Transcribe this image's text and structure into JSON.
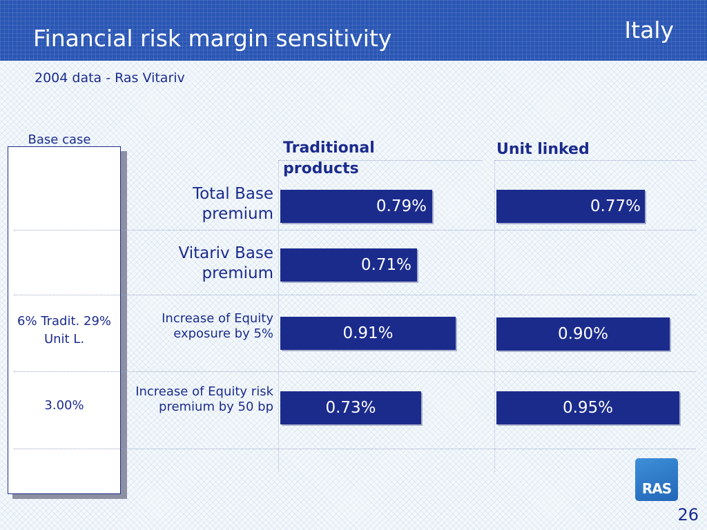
{
  "header": {
    "title": "Financial risk margin sensitivity",
    "country": "Italy"
  },
  "subtitle": "2004 data - Ras Vitariv",
  "base_case": {
    "heading": "Base case assumptions",
    "values": [
      "",
      "",
      "6% Tradit. 29% Unit L.",
      "3.00%"
    ]
  },
  "colors": {
    "bar": "#1b2b8c",
    "header": "#2a56b4",
    "text": "#1b2b8c"
  },
  "footer": {
    "logo_text": "RAS",
    "page_number": "26"
  },
  "chart_data": {
    "type": "bar",
    "orientation": "horizontal",
    "title": "",
    "categories": [
      "Total Base premium",
      "Vitariv Base premium",
      "Increase of Equity exposure by 5%",
      "Increase of Equity risk premium by 50 bp"
    ],
    "series": [
      {
        "name": "Traditional products",
        "values": [
          0.79,
          0.71,
          0.91,
          0.73
        ],
        "labels": [
          "0.79%",
          "0.71%",
          "0.91%",
          "0.73%"
        ]
      },
      {
        "name": "Unit linked",
        "values": [
          0.77,
          null,
          0.9,
          0.95
        ],
        "labels": [
          "0.77%",
          null,
          "0.90%",
          "0.95%"
        ]
      }
    ],
    "unit": "%",
    "xlim": [
      0,
      1.0
    ],
    "grid": false,
    "legend": "column headers above"
  }
}
